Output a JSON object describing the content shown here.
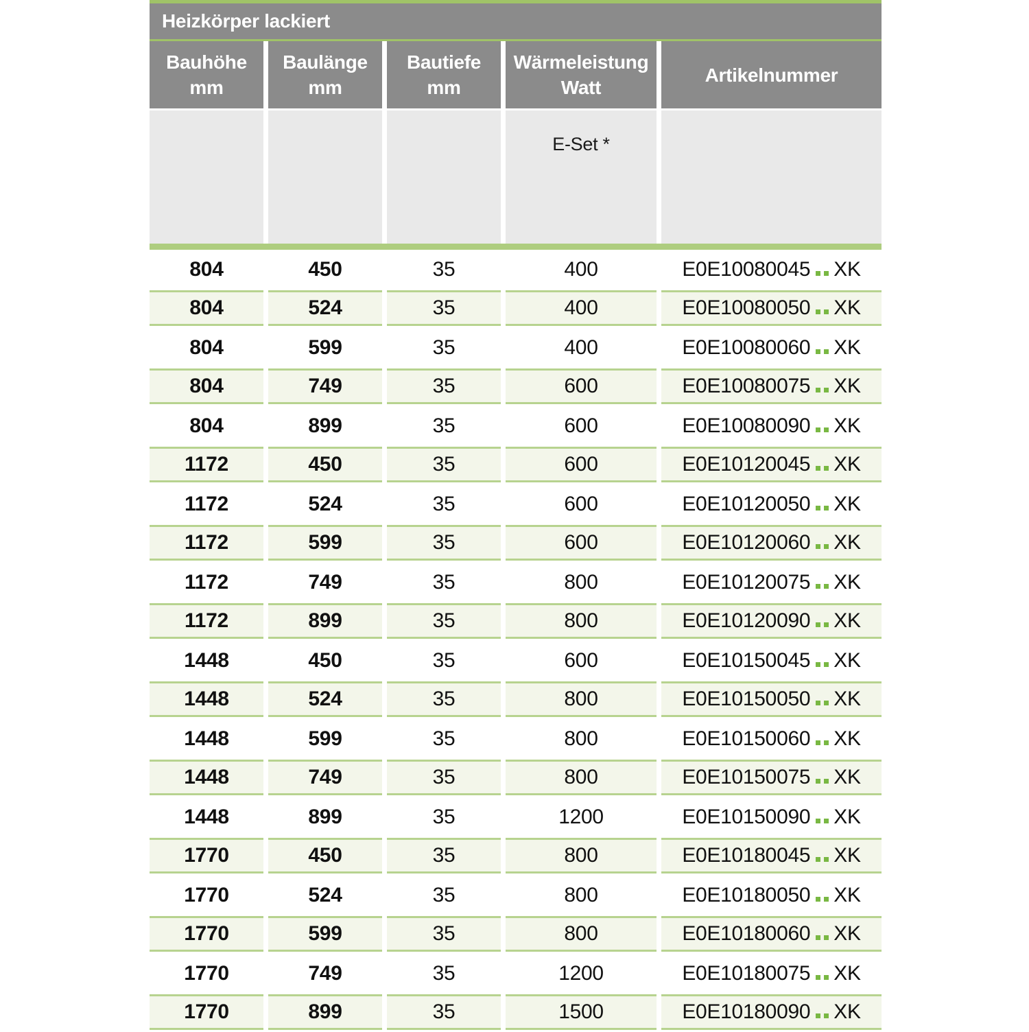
{
  "table": {
    "title": "Heizkörper lackiert",
    "columns": [
      {
        "line1": "Bauhöhe",
        "line2": "mm"
      },
      {
        "line1": "Baulänge",
        "line2": "mm"
      },
      {
        "line1": "Bautiefe",
        "line2": "mm"
      },
      {
        "line1": "Wärmeleistung",
        "line2": "Watt"
      },
      {
        "line1": "Artikelnummer",
        "line2": ""
      }
    ],
    "subheader": {
      "eset_label": "E-Set *"
    },
    "rows": [
      {
        "bauhoehe": "804",
        "baulaenge": "450",
        "bautiefe": "35",
        "watt": "400",
        "artikel_prefix": "E0E10080045",
        "artikel_suffix": "XK"
      },
      {
        "bauhoehe": "804",
        "baulaenge": "524",
        "bautiefe": "35",
        "watt": "400",
        "artikel_prefix": "E0E10080050",
        "artikel_suffix": "XK"
      },
      {
        "bauhoehe": "804",
        "baulaenge": "599",
        "bautiefe": "35",
        "watt": "400",
        "artikel_prefix": "E0E10080060",
        "artikel_suffix": "XK"
      },
      {
        "bauhoehe": "804",
        "baulaenge": "749",
        "bautiefe": "35",
        "watt": "600",
        "artikel_prefix": "E0E10080075",
        "artikel_suffix": "XK"
      },
      {
        "bauhoehe": "804",
        "baulaenge": "899",
        "bautiefe": "35",
        "watt": "600",
        "artikel_prefix": "E0E10080090",
        "artikel_suffix": "XK"
      },
      {
        "bauhoehe": "1172",
        "baulaenge": "450",
        "bautiefe": "35",
        "watt": "600",
        "artikel_prefix": "E0E10120045",
        "artikel_suffix": "XK"
      },
      {
        "bauhoehe": "1172",
        "baulaenge": "524",
        "bautiefe": "35",
        "watt": "600",
        "artikel_prefix": "E0E10120050",
        "artikel_suffix": "XK"
      },
      {
        "bauhoehe": "1172",
        "baulaenge": "599",
        "bautiefe": "35",
        "watt": "600",
        "artikel_prefix": "E0E10120060",
        "artikel_suffix": "XK"
      },
      {
        "bauhoehe": "1172",
        "baulaenge": "749",
        "bautiefe": "35",
        "watt": "800",
        "artikel_prefix": "E0E10120075",
        "artikel_suffix": "XK"
      },
      {
        "bauhoehe": "1172",
        "baulaenge": "899",
        "bautiefe": "35",
        "watt": "800",
        "artikel_prefix": "E0E10120090",
        "artikel_suffix": "XK"
      },
      {
        "bauhoehe": "1448",
        "baulaenge": "450",
        "bautiefe": "35",
        "watt": "600",
        "artikel_prefix": "E0E10150045",
        "artikel_suffix": "XK"
      },
      {
        "bauhoehe": "1448",
        "baulaenge": "524",
        "bautiefe": "35",
        "watt": "800",
        "artikel_prefix": "E0E10150050",
        "artikel_suffix": "XK"
      },
      {
        "bauhoehe": "1448",
        "baulaenge": "599",
        "bautiefe": "35",
        "watt": "800",
        "artikel_prefix": "E0E10150060",
        "artikel_suffix": "XK"
      },
      {
        "bauhoehe": "1448",
        "baulaenge": "749",
        "bautiefe": "35",
        "watt": "800",
        "artikel_prefix": "E0E10150075",
        "artikel_suffix": "XK"
      },
      {
        "bauhoehe": "1448",
        "baulaenge": "899",
        "bautiefe": "35",
        "watt": "1200",
        "artikel_prefix": "E0E10150090",
        "artikel_suffix": "XK"
      },
      {
        "bauhoehe": "1770",
        "baulaenge": "450",
        "bautiefe": "35",
        "watt": "800",
        "artikel_prefix": "E0E10180045",
        "artikel_suffix": "XK"
      },
      {
        "bauhoehe": "1770",
        "baulaenge": "524",
        "bautiefe": "35",
        "watt": "800",
        "artikel_prefix": "E0E10180050",
        "artikel_suffix": "XK"
      },
      {
        "bauhoehe": "1770",
        "baulaenge": "599",
        "bautiefe": "35",
        "watt": "800",
        "artikel_prefix": "E0E10180060",
        "artikel_suffix": "XK"
      },
      {
        "bauhoehe": "1770",
        "baulaenge": "749",
        "bautiefe": "35",
        "watt": "1200",
        "artikel_prefix": "E0E10180075",
        "artikel_suffix": "XK"
      },
      {
        "bauhoehe": "1770",
        "baulaenge": "899",
        "bautiefe": "35",
        "watt": "1500",
        "artikel_prefix": "E0E10180090",
        "artikel_suffix": "XK"
      }
    ]
  },
  "colors": {
    "header_gray": "#8b8b8b",
    "subheader_gray": "#e9e9e9",
    "accent_green_line": "#a0c368",
    "accent_green_band": "#aecd7f",
    "row_green_bg": "#f3f6ea",
    "row_green_border": "#b7d38f",
    "dot_green": "#79b843",
    "header_text": "#ffffff",
    "body_text": "#111111"
  }
}
